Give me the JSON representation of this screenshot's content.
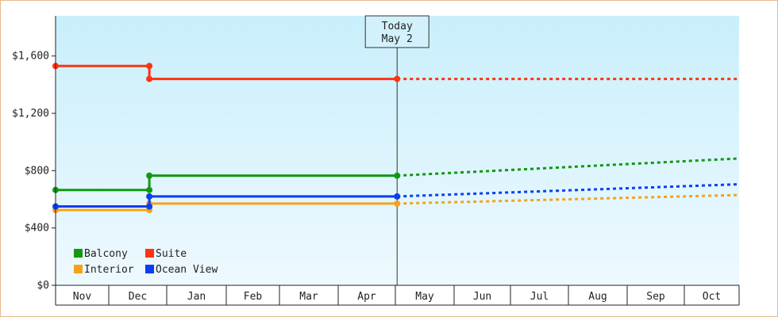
{
  "chart_data": {
    "type": "line",
    "step": true,
    "x_months": [
      "Nov",
      "Dec",
      "Jan",
      "Feb",
      "Mar",
      "Apr",
      "May",
      "Jun",
      "Jul",
      "Aug",
      "Sep",
      "Oct"
    ],
    "ylim": [
      0,
      1880
    ],
    "yticks": [
      0,
      400,
      800,
      1200,
      1600
    ],
    "ytick_labels": [
      "$0",
      "$400",
      "$800",
      "$1,200",
      "$1,600"
    ],
    "today_label": [
      "Today",
      "May 2"
    ],
    "today_x": 6.03,
    "legend_placement": "bottom-left",
    "series": [
      {
        "name": "Balcony",
        "color": "#119911",
        "actual": [
          [
            0,
            665
          ],
          [
            1.7,
            665
          ],
          [
            1.7,
            765
          ],
          [
            6.03,
            765
          ]
        ],
        "forecast": [
          [
            6.03,
            765
          ],
          [
            12,
            885
          ]
        ]
      },
      {
        "name": "Suite",
        "color": "#ff3311",
        "actual": [
          [
            0,
            1530
          ],
          [
            1.7,
            1530
          ],
          [
            1.7,
            1440
          ],
          [
            6.03,
            1440
          ]
        ],
        "forecast": [
          [
            6.03,
            1440
          ],
          [
            12,
            1440
          ]
        ]
      },
      {
        "name": "Interior",
        "color": "#f5a21b",
        "actual": [
          [
            0,
            525
          ],
          [
            1.7,
            525
          ],
          [
            1.7,
            570
          ],
          [
            6.03,
            570
          ]
        ],
        "forecast": [
          [
            6.03,
            570
          ],
          [
            12,
            630
          ]
        ]
      },
      {
        "name": "Ocean View",
        "color": "#0a3ff0",
        "actual": [
          [
            0,
            550
          ],
          [
            1.7,
            550
          ],
          [
            1.7,
            620
          ],
          [
            6.03,
            620
          ]
        ],
        "forecast": [
          [
            6.03,
            620
          ],
          [
            12,
            705
          ]
        ]
      }
    ]
  }
}
